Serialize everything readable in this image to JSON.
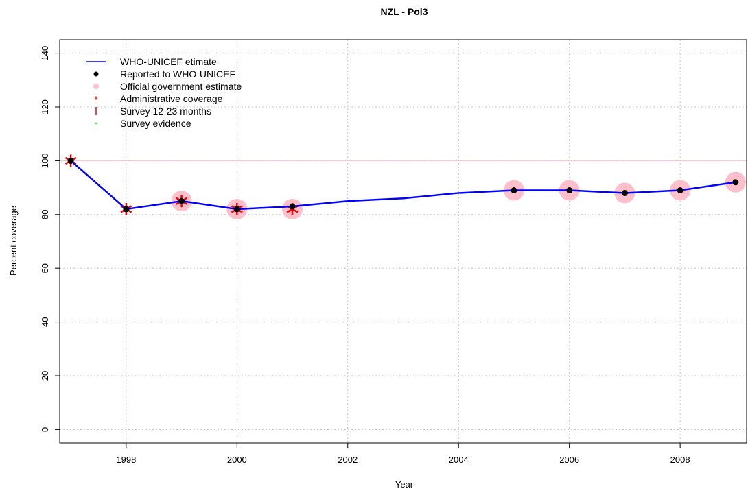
{
  "chart_data": {
    "type": "line",
    "title": "NZL  -  Pol3",
    "xlabel": "Year",
    "ylabel": "Percent coverage",
    "xlim": [
      1996.8,
      2009.2
    ],
    "ylim": [
      -5,
      145
    ],
    "x_ticks": [
      1998,
      2000,
      2002,
      2004,
      2006,
      2008
    ],
    "x_tick_labels": [
      "1998",
      "2000",
      "2002",
      "2004",
      "2006",
      "2008"
    ],
    "y_ticks": [
      0,
      20,
      40,
      60,
      80,
      100,
      120,
      140
    ],
    "y_tick_labels": [
      "0",
      "20",
      "40",
      "60",
      "80",
      "100",
      "120",
      "140"
    ],
    "grid": true,
    "reference_line": {
      "y": 100,
      "color": "#ffc0cb"
    },
    "legend_position": "top-left",
    "legend": [
      {
        "label": "WHO-UNICEF etimate",
        "symbol": "line",
        "color": "#0000ff"
      },
      {
        "label": "Reported to WHO-UNICEF",
        "symbol": "dot",
        "color": "#000000"
      },
      {
        "label": "Official government estimate",
        "symbol": "circle",
        "color": "#ffc0cb"
      },
      {
        "label": "Administrative coverage",
        "symbol": "asterisk",
        "color": "#ff0000"
      },
      {
        "label": "Survey 12-23 months",
        "symbol": "bar",
        "color": "#ff0000"
      },
      {
        "label": "Survey evidence",
        "symbol": "dash",
        "color": "#00cc00"
      }
    ],
    "series": [
      {
        "name": "WHO-UNICEF etimate",
        "color": "#0000ff",
        "x": [
          1997,
          1998,
          1999,
          2000,
          2001,
          2002,
          2003,
          2004,
          2005,
          2006,
          2007,
          2008,
          2009
        ],
        "values": [
          100,
          82,
          85,
          82,
          83,
          85,
          86,
          88,
          89,
          89,
          88,
          89,
          92
        ]
      },
      {
        "name": "Reported to WHO-UNICEF",
        "color": "#000000",
        "x": [
          1997,
          1998,
          1999,
          2000,
          2001,
          2005,
          2006,
          2007,
          2008,
          2009
        ],
        "values": [
          100,
          82,
          85,
          82,
          83,
          89,
          89,
          88,
          89,
          92
        ]
      },
      {
        "name": "Official government estimate",
        "color": "#ffc0cb",
        "x": [
          1999,
          2000,
          2001,
          2005,
          2006,
          2007,
          2008,
          2009
        ],
        "values": [
          85,
          82,
          82,
          89,
          89,
          88,
          89,
          92
        ]
      },
      {
        "name": "Administrative coverage",
        "color": "#ff0000",
        "x": [
          1997,
          1998,
          1999,
          2000,
          2001
        ],
        "values": [
          100,
          82,
          85,
          82,
          82
        ]
      }
    ]
  }
}
